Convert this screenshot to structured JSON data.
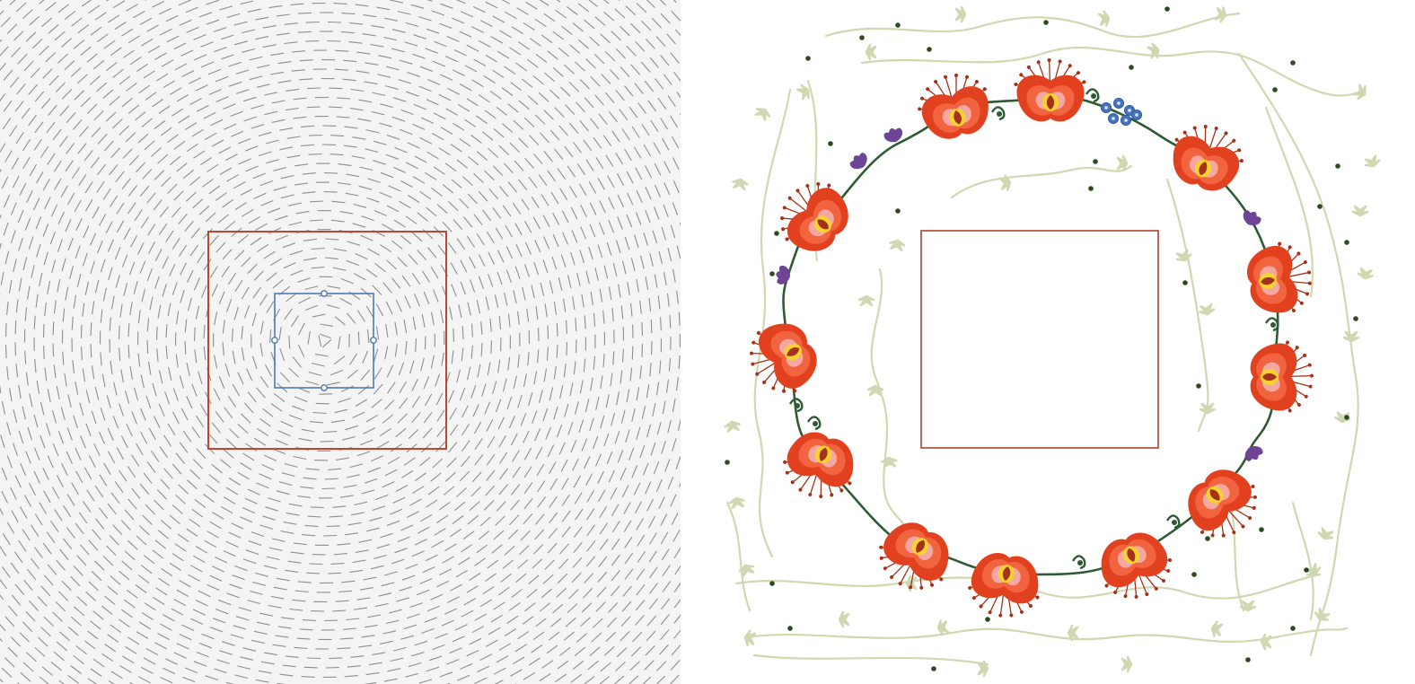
{
  "canvas_left": {
    "name": "vector-field-canvas",
    "background": "#f4f4f4",
    "stroke_color": "#8e8e8e",
    "outer_frame_color": "#c0442e",
    "selection_color": "#4a7ab8",
    "pattern": "concentric-circular-dashes"
  },
  "canvas_right": {
    "name": "floral-wreath-canvas",
    "background": "#ffffff",
    "frame_color": "#b3412d",
    "vine_color": "#cfd8b0",
    "dot_color": "#2d4a1f",
    "stem_color": "#2e5b34",
    "flower_colors": {
      "outer": "#e2411f",
      "middle": "#f26440",
      "inner": "#f4a7a3",
      "center": "#f5d230",
      "seed": "#a5311a"
    },
    "violet_color": "#6d4496",
    "blue_cluster_color": "#4a75be",
    "icons": [
      "red-flower-icon",
      "violet-bloom-icon",
      "blue-cluster-icon",
      "vine-leaf-icon"
    ]
  }
}
